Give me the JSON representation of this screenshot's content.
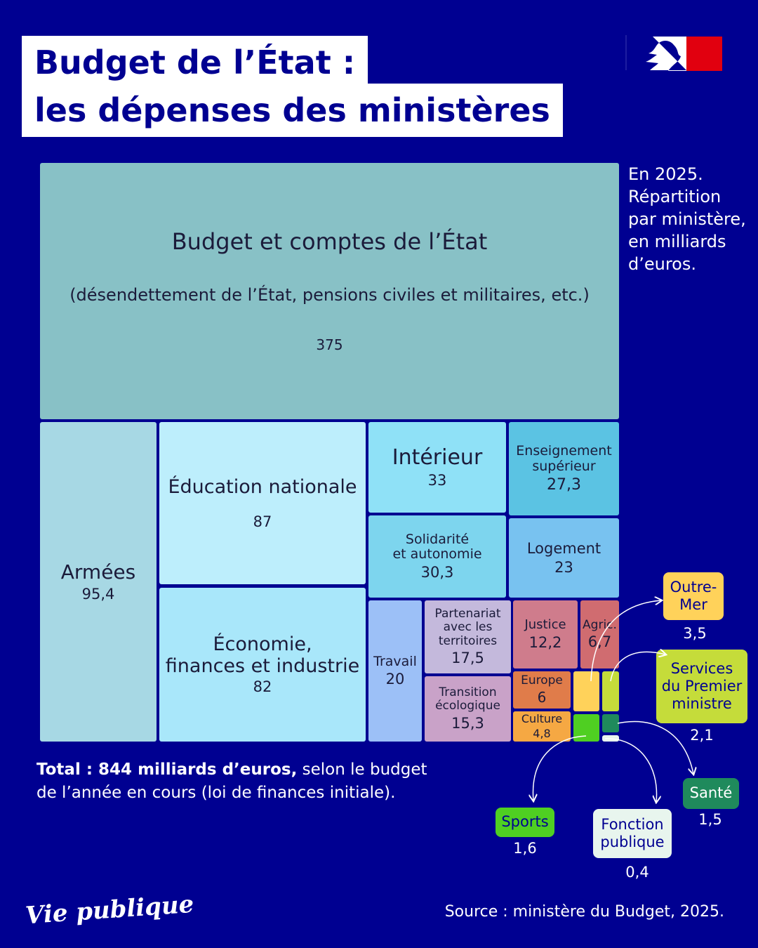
{
  "header": {
    "title_line1": "Budget de l’État :",
    "title_line2": "les dépenses des ministères"
  },
  "description": "En 2025.\nRépartition\npar ministère,\nen milliards\nd’euros.",
  "total_bold": "Total : 844 milliards d’euros,",
  "total_rest": " selon le budget\nde l’année en cours (loi de finances initiale).",
  "source": "Source : ministère du Budget, 2025.",
  "brand": "Vie publique",
  "chart_data": {
    "type": "treemap",
    "categories": [
      "Budget et comptes de l’État",
      "Armées",
      "Éducation nationale",
      "Économie,\nfinances et industrie",
      "Intérieur",
      "Enseignement\nsupérieur",
      "Solidarité\net autonomie",
      "Logement",
      "Travail",
      "Partenariat\navec les\nterritoires",
      "Transition\nécologique",
      "Justice",
      "Agric.",
      "Europe",
      "Culture",
      "Outre-\nMer",
      "Services\ndu Premier\nministre",
      "Sports",
      "Santé",
      "Fonction\npublique"
    ],
    "category_note": "(désendettement de l’État, pensions civiles et militaires, etc.)",
    "values": [
      375,
      95.4,
      87,
      82,
      33,
      27.3,
      30.3,
      23,
      20,
      17.5,
      15.3,
      12.2,
      6.7,
      6,
      4.8,
      3.5,
      2.1,
      1.6,
      1.5,
      0.4
    ],
    "value_labels": [
      "375",
      "95,4",
      "87",
      "82",
      "33",
      "27,3",
      "30,3",
      "23",
      "20",
      "17,5",
      "15,3",
      "12,2",
      "6,7",
      "6",
      "4,8",
      "3,5",
      "2,1",
      "1,6",
      "1,5",
      "0,4"
    ],
    "colors": [
      "#88c1c6",
      "#a7d8e4",
      "#bdeefc",
      "#a9e7fa",
      "#8fe1f7",
      "#5bc3e3",
      "#7dd5ee",
      "#78c2f0",
      "#9cc0f7",
      "#c4b9dc",
      "#c9a2c8",
      "#cf7c8c",
      "#d06c70",
      "#e07c4a",
      "#f5a843",
      "#ffd25a",
      "#c5dc3a",
      "#4fcf22",
      "#1f8a5c",
      "#e8f5ee"
    ]
  }
}
